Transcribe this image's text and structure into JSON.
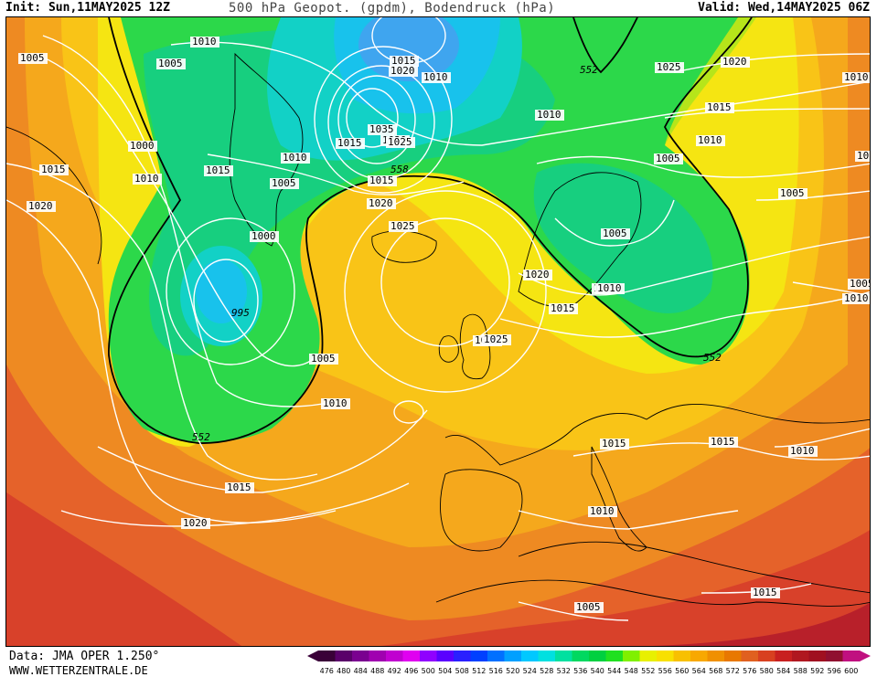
{
  "header": {
    "init": "Init: Sun,11MAY2025 12Z",
    "title": "500 hPa Geopot. (gpdm), Bodendruck (hPa)",
    "valid": "Valid: Wed,14MAY2025 06Z"
  },
  "footer": {
    "data": "Data: JMA OPER 1.250°",
    "site": "WWW.WETTERZENTRALE.DE"
  },
  "colors": {
    "dark_red": "#b8202a",
    "red": "#d8412a",
    "red_orange": "#e5622a",
    "orange": "#ee8a22",
    "orange_yellow": "#f5a81c",
    "yellow_orange": "#f9c417",
    "yellow": "#f5e512",
    "yellow_green": "#b6e51a",
    "green": "#2cd84a",
    "green_teal": "#17cf7f",
    "teal": "#12d1c6",
    "cyan": "#18c2ec",
    "light_blue": "#3fa5ef",
    "isobar": "#ffffff",
    "coast": "#000000"
  },
  "isobar_labels": [
    {
      "text": "1005"
    },
    {
      "text": "1010"
    },
    {
      "text": "1005"
    },
    {
      "text": "1000"
    },
    {
      "text": "1015"
    },
    {
      "text": "1010"
    },
    {
      "text": "1020"
    },
    {
      "text": "1015"
    },
    {
      "text": "1010"
    },
    {
      "text": "1005"
    },
    {
      "text": "1000"
    },
    {
      "text": "995"
    },
    {
      "text": "1005"
    },
    {
      "text": "1010"
    },
    {
      "text": "552"
    },
    {
      "text": "1015"
    },
    {
      "text": "1020"
    },
    {
      "text": "1015"
    },
    {
      "text": "1020"
    },
    {
      "text": "1010"
    },
    {
      "text": "1035"
    },
    {
      "text": "1030"
    },
    {
      "text": "1025"
    },
    {
      "text": "1015"
    },
    {
      "text": "558"
    },
    {
      "text": "1015"
    },
    {
      "text": "1020"
    },
    {
      "text": "1025"
    },
    {
      "text": "1010"
    },
    {
      "text": "552"
    },
    {
      "text": "1025"
    },
    {
      "text": "1020"
    },
    {
      "text": "1010"
    },
    {
      "text": "1005"
    },
    {
      "text": "1005"
    },
    {
      "text": "1010"
    },
    {
      "text": "1015"
    },
    {
      "text": "1020"
    },
    {
      "text": "1020"
    },
    {
      "text": "1010"
    },
    {
      "text": "1005"
    },
    {
      "text": "1015"
    },
    {
      "text": "1010"
    },
    {
      "text": "1025"
    },
    {
      "text": "552"
    },
    {
      "text": "1005"
    },
    {
      "text": "1005"
    },
    {
      "text": "1015"
    },
    {
      "text": "1015"
    },
    {
      "text": "1010"
    },
    {
      "text": "1010"
    },
    {
      "text": "1005"
    },
    {
      "text": "1015"
    },
    {
      "text": "1010"
    }
  ],
  "color_scale": {
    "labels": [
      "476",
      "480",
      "484",
      "488",
      "492",
      "496",
      "500",
      "504",
      "508",
      "512",
      "516",
      "520",
      "524",
      "528",
      "532",
      "536",
      "540",
      "544",
      "548",
      "552",
      "556",
      "560",
      "564",
      "568",
      "572",
      "576",
      "580",
      "584",
      "588",
      "592",
      "596",
      "600"
    ],
    "colors": [
      "#3a0038",
      "#5a006a",
      "#7a0090",
      "#a000b0",
      "#c000d0",
      "#e000f0",
      "#9000ff",
      "#5a00ff",
      "#2a20ff",
      "#0040ff",
      "#0070ff",
      "#00a0ff",
      "#00c8ff",
      "#00e0e0",
      "#00e0a0",
      "#00d860",
      "#00d040",
      "#20e020",
      "#80f000",
      "#e8f000",
      "#f8e000",
      "#f8c000",
      "#f8a800",
      "#f09000",
      "#e87800",
      "#e06020",
      "#d84020",
      "#c82020",
      "#b01820",
      "#a01020",
      "#901030",
      "#c01080"
    ]
  }
}
